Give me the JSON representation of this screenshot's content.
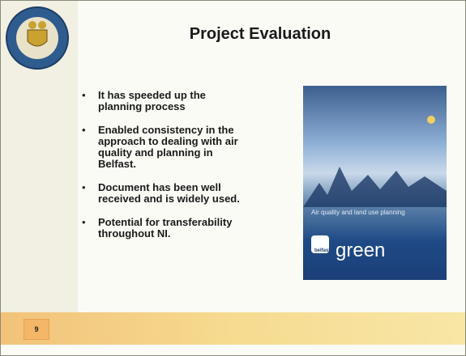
{
  "header": {
    "title": "Project Evaluation"
  },
  "bullets": [
    "It has speeded up the planning process",
    "Enabled consistency in the approach to dealing with air quality and planning in Belfast.",
    "Document has been well received and is widely used.",
    "Potential for transferability throughout NI."
  ],
  "cover": {
    "title": "Air quality and land use planning",
    "brand_small": "belfast",
    "brand": "green"
  },
  "footer": {
    "page_number": "9"
  }
}
